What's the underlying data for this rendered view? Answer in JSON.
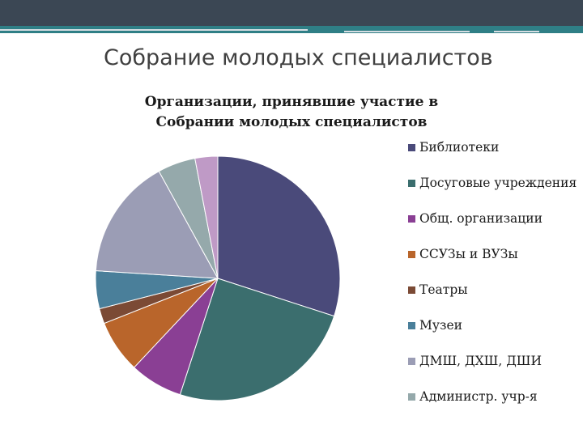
{
  "slide": {
    "title": "Собрание молодых специалистов"
  },
  "chart_data": {
    "type": "pie",
    "title": "Организации, принявшие участие в Собрании молодых специалистов",
    "legend_position": "right",
    "categories": [
      "Библиотеки",
      "Досуговые учреждения",
      "Общ. организации",
      "ССУЗы и ВУЗы",
      "Театры",
      "Музеи",
      "ДМШ, ДХШ, ДШИ",
      "Администр. учр-я",
      ""
    ],
    "values": [
      30,
      25,
      7,
      7,
      2,
      5,
      16,
      5,
      3
    ],
    "colors": [
      "#4a4a7a",
      "#3b6e6e",
      "#8a3f94",
      "#b9652b",
      "#7b4a35",
      "#4a7f9a",
      "#9b9db5",
      "#95a9ab",
      "#bf9ac6"
    ]
  }
}
